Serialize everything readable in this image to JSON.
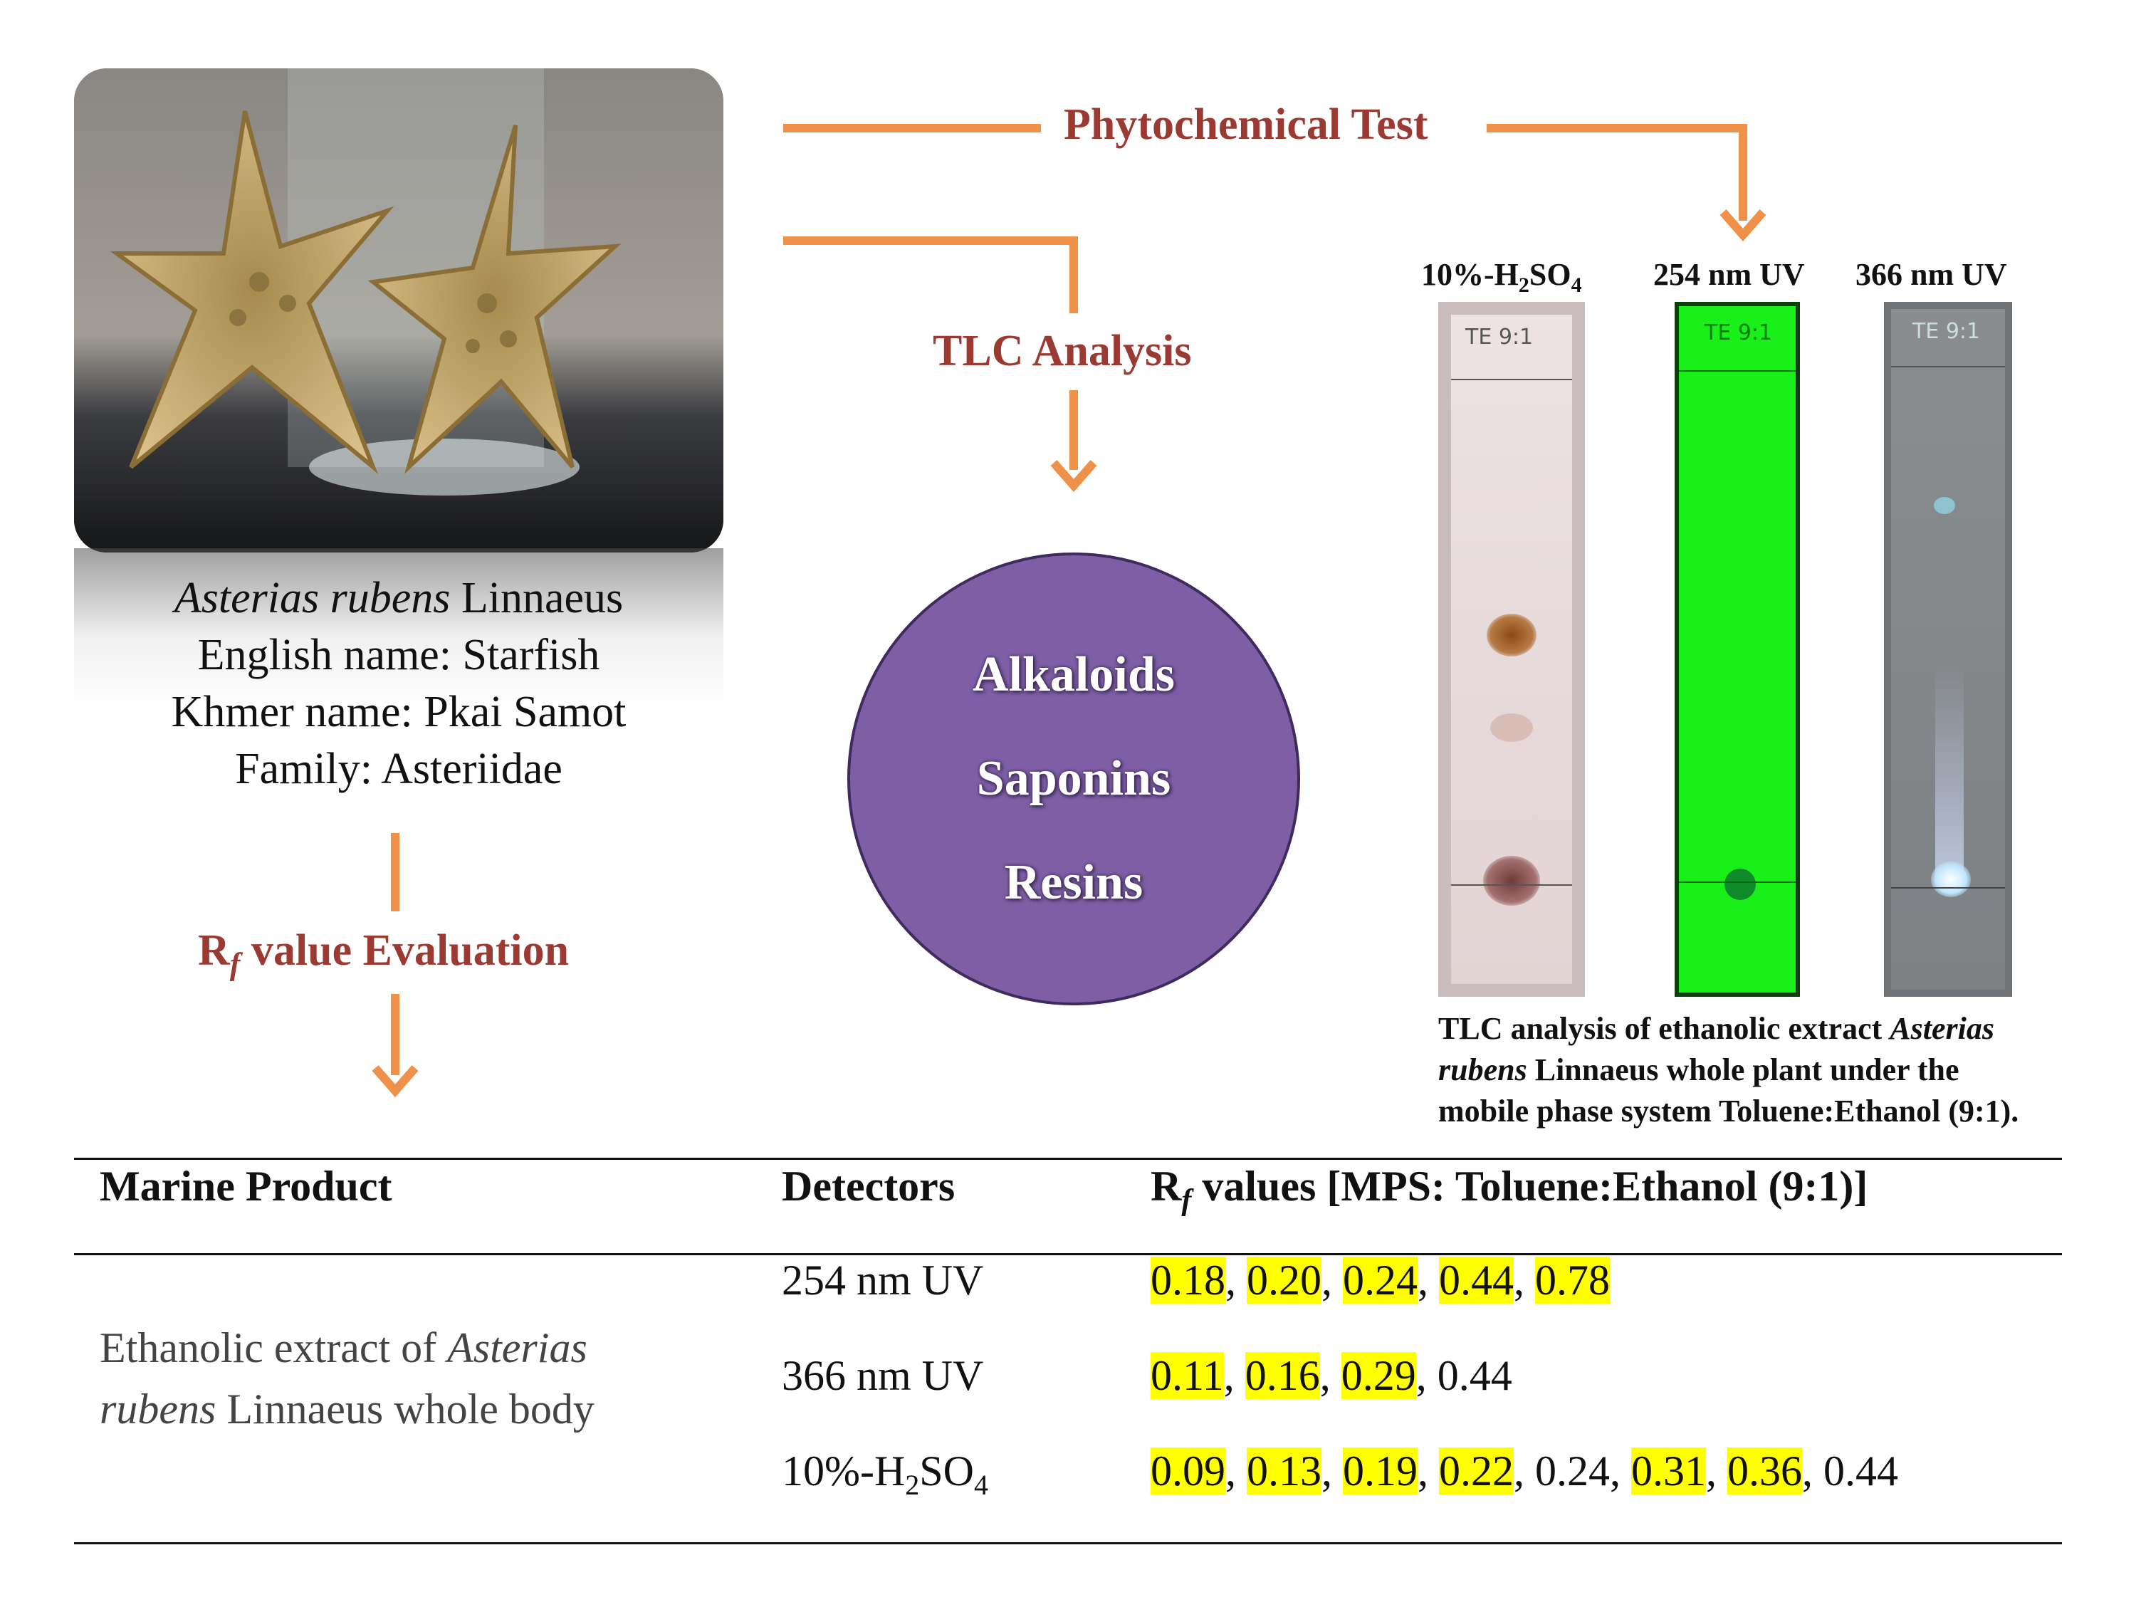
{
  "species": {
    "genus_species": "Asterias rubens",
    "authority": "Linnaeus",
    "english_name": "English name: Starfish",
    "khmer_name": "Khmer name: Pkai Samot",
    "family": "Family: Asteriidae"
  },
  "labels": {
    "phytochemical_test": "Phytochemical Test",
    "tlc_analysis": "TLC Analysis",
    "rf_evaluation_symbol": "R",
    "rf_evaluation_sub": "f",
    "rf_evaluation_rest": " value Evaluation"
  },
  "compounds": [
    "Alkaloids",
    "Saponins",
    "Resins"
  ],
  "tlc": {
    "plates": [
      {
        "label_main": "10%-H",
        "label_sub1": "2",
        "label_mid": "SO",
        "label_sub2": "4"
      },
      {
        "label": "254 nm UV"
      },
      {
        "label": "366 nm UV"
      }
    ],
    "plate_writing": [
      "TE 9:1",
      "TE 9:1",
      "TE 9:1"
    ],
    "caption_line1_a": "TLC analysis of ethanolic extract ",
    "caption_line1_b": "Asterias",
    "caption_line2_a": "rubens",
    "caption_line2_b": " Linnaeus whole plant under the",
    "caption_line3": "mobile phase system Toluene:Ethanol (9:1)."
  },
  "table": {
    "headers": {
      "product": "Marine Product",
      "detectors": "Detectors",
      "rf_symbol": "R",
      "rf_sub": "f",
      "rf_rest": " values [MPS: Toluene:Ethanol (9:1)]"
    },
    "product_line1_a": "Ethanolic extract of ",
    "product_line1_b": "Asterias",
    "product_line2_a": "rubens",
    "product_line2_b": " Linnaeus whole body",
    "rows": [
      {
        "detector": "254 nm UV",
        "values": [
          {
            "v": "0.18",
            "hl": true
          },
          {
            "v": "0.20",
            "hl": true
          },
          {
            "v": "0.24",
            "hl": true
          },
          {
            "v": "0.44",
            "hl": true
          },
          {
            "v": "0.78",
            "hl": true
          }
        ]
      },
      {
        "detector": "366 nm UV",
        "values": [
          {
            "v": "0.11",
            "hl": true
          },
          {
            "v": "0.16",
            "hl": true
          },
          {
            "v": "0.29",
            "hl": true
          },
          {
            "v": "0.44",
            "hl": false
          }
        ]
      },
      {
        "detector_main": "10%-H",
        "detector_sub1": "2",
        "detector_mid": "SO",
        "detector_sub2": "4",
        "values": [
          {
            "v": "0.09",
            "hl": true
          },
          {
            "v": "0.13",
            "hl": true
          },
          {
            "v": "0.19",
            "hl": true
          },
          {
            "v": "0.22",
            "hl": true
          },
          {
            "v": "0.24",
            "hl": false
          },
          {
            "v": "0.31",
            "hl": true
          },
          {
            "v": "0.36",
            "hl": true
          },
          {
            "v": "0.44",
            "hl": false
          }
        ]
      }
    ]
  },
  "colors": {
    "arrow": "#f0914a",
    "label_red": "#9b3a32",
    "circle_fill": "#7e5fa6",
    "highlight": "#ffff00",
    "uv254_green": "#19f019"
  }
}
